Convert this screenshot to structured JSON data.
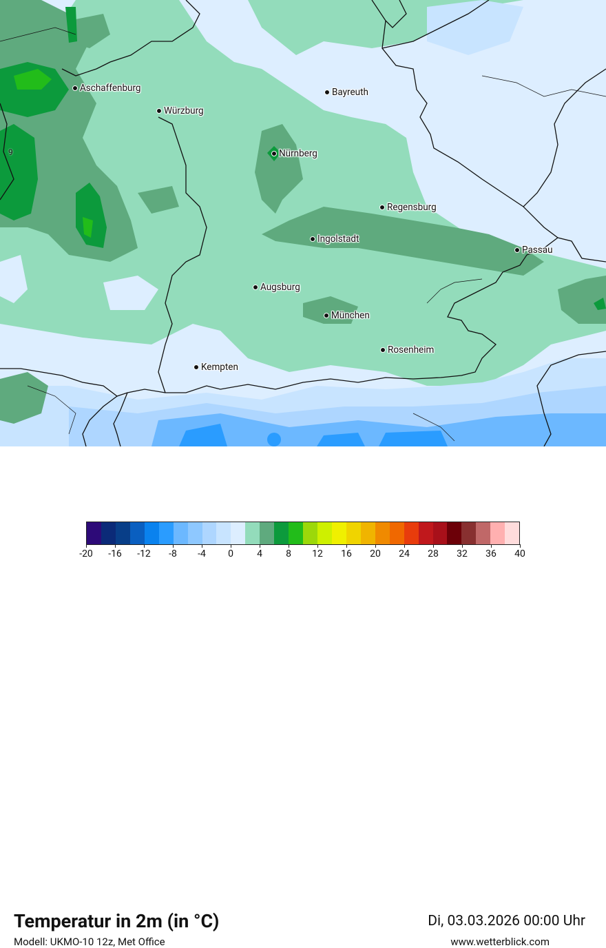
{
  "map": {
    "cities": [
      {
        "name": "Aschaffenburg"
      },
      {
        "name": "Würzburg"
      },
      {
        "name": "Bayreuth"
      },
      {
        "name": "Nürnberg"
      },
      {
        "name": "Regensburg"
      },
      {
        "name": "Ingolstadt"
      },
      {
        "name": "Passau"
      },
      {
        "name": "Augsburg"
      },
      {
        "name": "München"
      },
      {
        "name": "Rosenheim"
      },
      {
        "name": "Kempten"
      }
    ],
    "edge_value": "9"
  },
  "footer": {
    "title": "Temperatur in 2m (in °C)",
    "model": "Modell: UKMO-10 12z, Met Office",
    "datetime": "Di, 03.03.2026 00:00 Uhr",
    "website": "www.wetterblick.com"
  },
  "legend": {
    "colors": [
      "#2d0a78",
      "#0b2a78",
      "#083e88",
      "#0a5fc0",
      "#0a82ee",
      "#2a9cff",
      "#6cb8ff",
      "#8ec8ff",
      "#aed6ff",
      "#c8e4ff",
      "#ddeeff",
      "#93dcbb",
      "#5faa7e",
      "#0c9a3c",
      "#22bc1a",
      "#9cd80a",
      "#cef000",
      "#f0f000",
      "#f0d400",
      "#f0b400",
      "#f08a00",
      "#f06800",
      "#e83c0c",
      "#c0181c",
      "#a8101a",
      "#6c0008",
      "#883030",
      "#c06868",
      "#ffb0b0",
      "#ffdcdc"
    ],
    "tick_labels": [
      "-20",
      "-16",
      "-12",
      "-8",
      "-4",
      "0",
      "4",
      "8",
      "12",
      "16",
      "20",
      "24",
      "28",
      "32",
      "36",
      "40"
    ]
  }
}
